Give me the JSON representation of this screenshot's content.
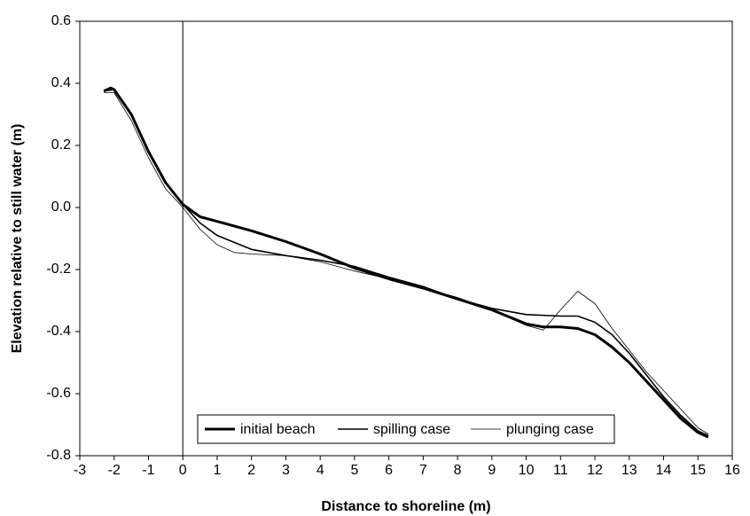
{
  "chart_data": {
    "type": "line",
    "xlabel": "Distance to shoreline (m)",
    "ylabel": "Elevation relative to still water (m)",
    "xlim": [
      -3,
      16
    ],
    "xticks": [
      -3,
      -2,
      -1,
      0,
      1,
      2,
      3,
      4,
      5,
      6,
      7,
      8,
      9,
      10,
      11,
      12,
      13,
      14,
      15,
      16
    ],
    "ylim": [
      -0.8,
      0.6
    ],
    "yticks": [
      -0.8,
      -0.6,
      -0.4,
      -0.2,
      {
        "value": 0,
        "label": "0.0"
      },
      0.2,
      0.4,
      0.6
    ],
    "vline": 0,
    "legend": "lower center",
    "series": [
      {
        "name": "initial beach",
        "color": "#000000",
        "width": 3,
        "x": [
          -2.3,
          -2.1,
          -2.0,
          -1.5,
          -1,
          -0.5,
          0,
          0.5,
          1,
          2,
          3,
          4,
          5,
          6,
          7,
          8,
          9,
          10,
          10.5,
          11,
          11.5,
          12,
          12.5,
          13,
          13.5,
          14,
          14.5,
          15,
          15.3
        ],
        "values": [
          0.375,
          0.385,
          0.38,
          0.3,
          0.18,
          0.08,
          0.01,
          -0.03,
          -0.045,
          -0.075,
          -0.11,
          -0.15,
          -0.195,
          -0.23,
          -0.26,
          -0.295,
          -0.33,
          -0.375,
          -0.385,
          -0.385,
          -0.39,
          -0.41,
          -0.45,
          -0.5,
          -0.56,
          -0.62,
          -0.68,
          -0.725,
          -0.74
        ]
      },
      {
        "name": "spilling case",
        "color": "#000000",
        "width": 1.6,
        "x": [
          -2.3,
          -2.0,
          -1.5,
          -1,
          -0.5,
          0,
          0.5,
          1,
          2,
          3,
          4,
          5,
          6,
          7,
          8,
          9,
          10,
          11,
          11.5,
          12,
          12.5,
          13,
          13.5,
          14,
          14.5,
          15,
          15.3
        ],
        "values": [
          0.375,
          0.38,
          0.3,
          0.18,
          0.08,
          0.01,
          -0.05,
          -0.09,
          -0.135,
          -0.155,
          -0.17,
          -0.19,
          -0.225,
          -0.255,
          -0.295,
          -0.325,
          -0.345,
          -0.35,
          -0.35,
          -0.37,
          -0.41,
          -0.47,
          -0.54,
          -0.61,
          -0.67,
          -0.72,
          -0.735
        ]
      },
      {
        "name": "plunging case",
        "color": "#000000",
        "width": 0.8,
        "x": [
          -2.3,
          -2.0,
          -1.5,
          -1,
          -0.5,
          0,
          0.5,
          1,
          1.5,
          2,
          3,
          4,
          5,
          6,
          7,
          8,
          9,
          10,
          10.5,
          11,
          11.5,
          12,
          12.5,
          13,
          13.5,
          14,
          14.5,
          15,
          15.3
        ],
        "values": [
          0.37,
          0.37,
          0.28,
          0.16,
          0.06,
          0.0,
          -0.07,
          -0.12,
          -0.145,
          -0.15,
          -0.155,
          -0.175,
          -0.205,
          -0.23,
          -0.26,
          -0.29,
          -0.33,
          -0.38,
          -0.395,
          -0.33,
          -0.27,
          -0.31,
          -0.39,
          -0.46,
          -0.53,
          -0.59,
          -0.65,
          -0.71,
          -0.73
        ]
      }
    ]
  }
}
